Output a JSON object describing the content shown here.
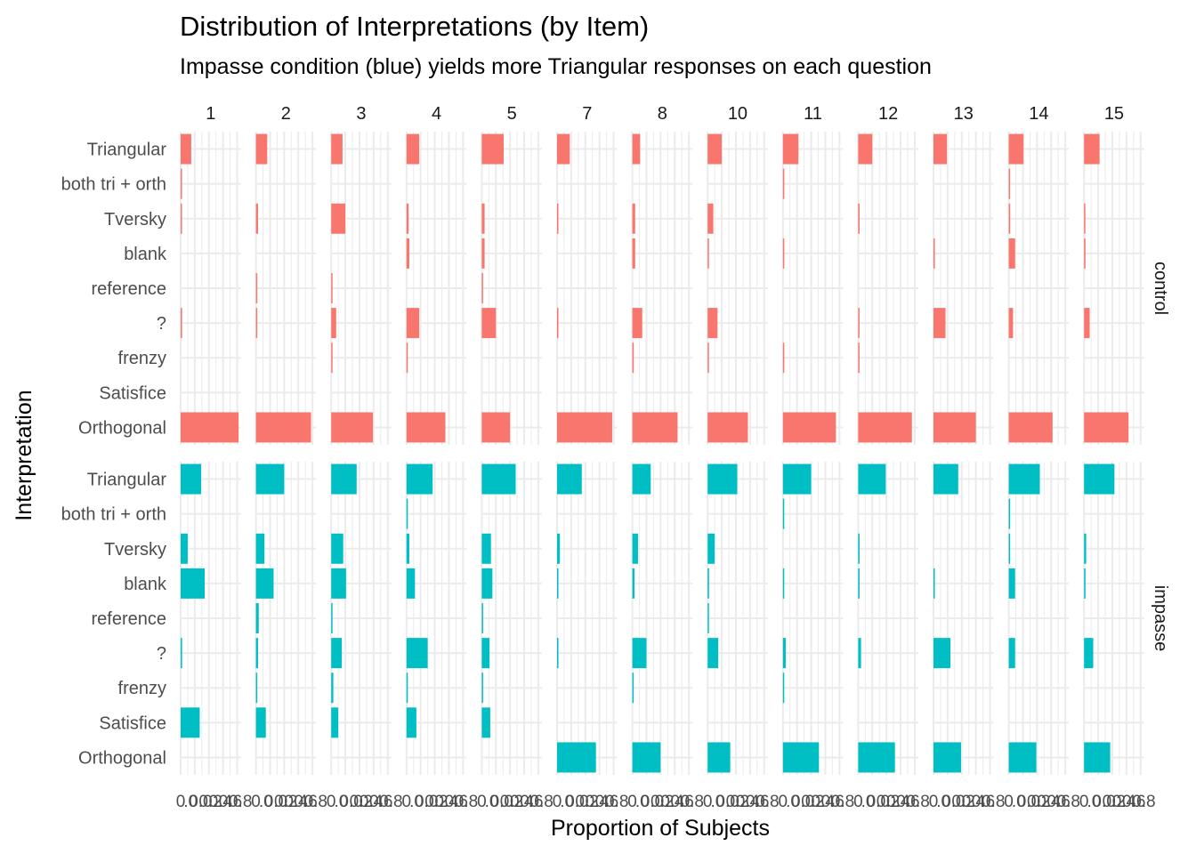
{
  "chart_data": {
    "type": "bar",
    "orientation": "horizontal",
    "title": "Distribution of Interpretations (by Item)",
    "subtitle": "Impasse condition (blue) yields more Triangular responses on each question",
    "xlabel": "Proportion of Subjects",
    "ylabel": "Interpretation",
    "xlim": [
      0,
      0.85
    ],
    "x_ticks": [
      "0",
      ".0",
      "0.0",
      "0.2",
      "0.4",
      "0.6",
      "0.8"
    ],
    "grid": true,
    "legend": "none",
    "items": [
      "1",
      "2",
      "3",
      "4",
      "5",
      "7",
      "8",
      "10",
      "11",
      "12",
      "13",
      "14",
      "15"
    ],
    "categories": [
      "Triangular",
      "both tri + orth",
      "Tversky",
      "blank",
      "reference",
      "?",
      "frenzy",
      "Satisfice",
      "Orthogonal"
    ],
    "conditions": [
      {
        "name": "control",
        "color": "#F8766D",
        "values": [
          [
            0.15,
            0.005,
            0.015,
            0,
            0,
            0.02,
            0,
            0,
            0.82
          ],
          [
            0.16,
            0,
            0.03,
            0,
            0.005,
            0.015,
            0,
            0,
            0.78
          ],
          [
            0.16,
            0,
            0.2,
            0,
            0.01,
            0.07,
            0.01,
            0,
            0.59
          ],
          [
            0.18,
            0,
            0.03,
            0.04,
            0,
            0.18,
            0.005,
            0,
            0.55
          ],
          [
            0.31,
            0,
            0.04,
            0.04,
            0.01,
            0.2,
            0,
            0,
            0.4
          ],
          [
            0.18,
            0,
            0.005,
            0,
            0,
            0.01,
            0,
            0,
            0.78
          ],
          [
            0.11,
            0,
            0.04,
            0.04,
            0,
            0.14,
            0.02,
            0,
            0.64
          ],
          [
            0.2,
            0,
            0.08,
            0.005,
            0,
            0.14,
            0.005,
            0,
            0.57
          ],
          [
            0.22,
            0.005,
            0,
            0.01,
            0,
            0,
            0.005,
            0,
            0.75
          ],
          [
            0.2,
            0,
            0.02,
            0,
            0,
            0.01,
            0.005,
            0,
            0.76
          ],
          [
            0.19,
            0,
            0,
            0.005,
            0,
            0.17,
            0,
            0,
            0.6
          ],
          [
            0.21,
            0.01,
            0.02,
            0.09,
            0,
            0.06,
            0,
            0,
            0.62
          ],
          [
            0.22,
            0,
            0.01,
            0.02,
            0,
            0.08,
            0,
            0,
            0.63
          ]
        ]
      },
      {
        "name": "impasse",
        "color": "#00BFC4",
        "values": [
          [
            0.29,
            0,
            0.1,
            0.34,
            0,
            0.02,
            0,
            0.27,
            0
          ],
          [
            0.4,
            0,
            0.12,
            0.25,
            0.04,
            0.03,
            0.01,
            0.14,
            0
          ],
          [
            0.36,
            0,
            0.17,
            0.21,
            0.01,
            0.15,
            0.03,
            0.1,
            0
          ],
          [
            0.37,
            0.005,
            0.04,
            0.12,
            0,
            0.3,
            0.005,
            0.14,
            0
          ],
          [
            0.48,
            0,
            0.13,
            0.15,
            0.01,
            0.11,
            0.01,
            0.12,
            0
          ],
          [
            0.35,
            0,
            0.04,
            0.01,
            0,
            0.01,
            0,
            0,
            0.55
          ],
          [
            0.26,
            0,
            0.08,
            0.03,
            0,
            0.2,
            0.005,
            0,
            0.4
          ],
          [
            0.42,
            0,
            0.1,
            0.02,
            0.005,
            0.15,
            0,
            0,
            0.32
          ],
          [
            0.4,
            0.005,
            0,
            0.01,
            0,
            0.04,
            0.005,
            0,
            0.51
          ],
          [
            0.39,
            0,
            0.02,
            0.02,
            0,
            0.04,
            0,
            0,
            0.52
          ],
          [
            0.35,
            0,
            0,
            0.005,
            0,
            0.24,
            0,
            0,
            0.39
          ],
          [
            0.44,
            0.01,
            0.01,
            0.09,
            0,
            0.09,
            0,
            0,
            0.39
          ],
          [
            0.43,
            0,
            0.03,
            0.02,
            0,
            0.13,
            0,
            0,
            0.37
          ]
        ]
      }
    ]
  }
}
